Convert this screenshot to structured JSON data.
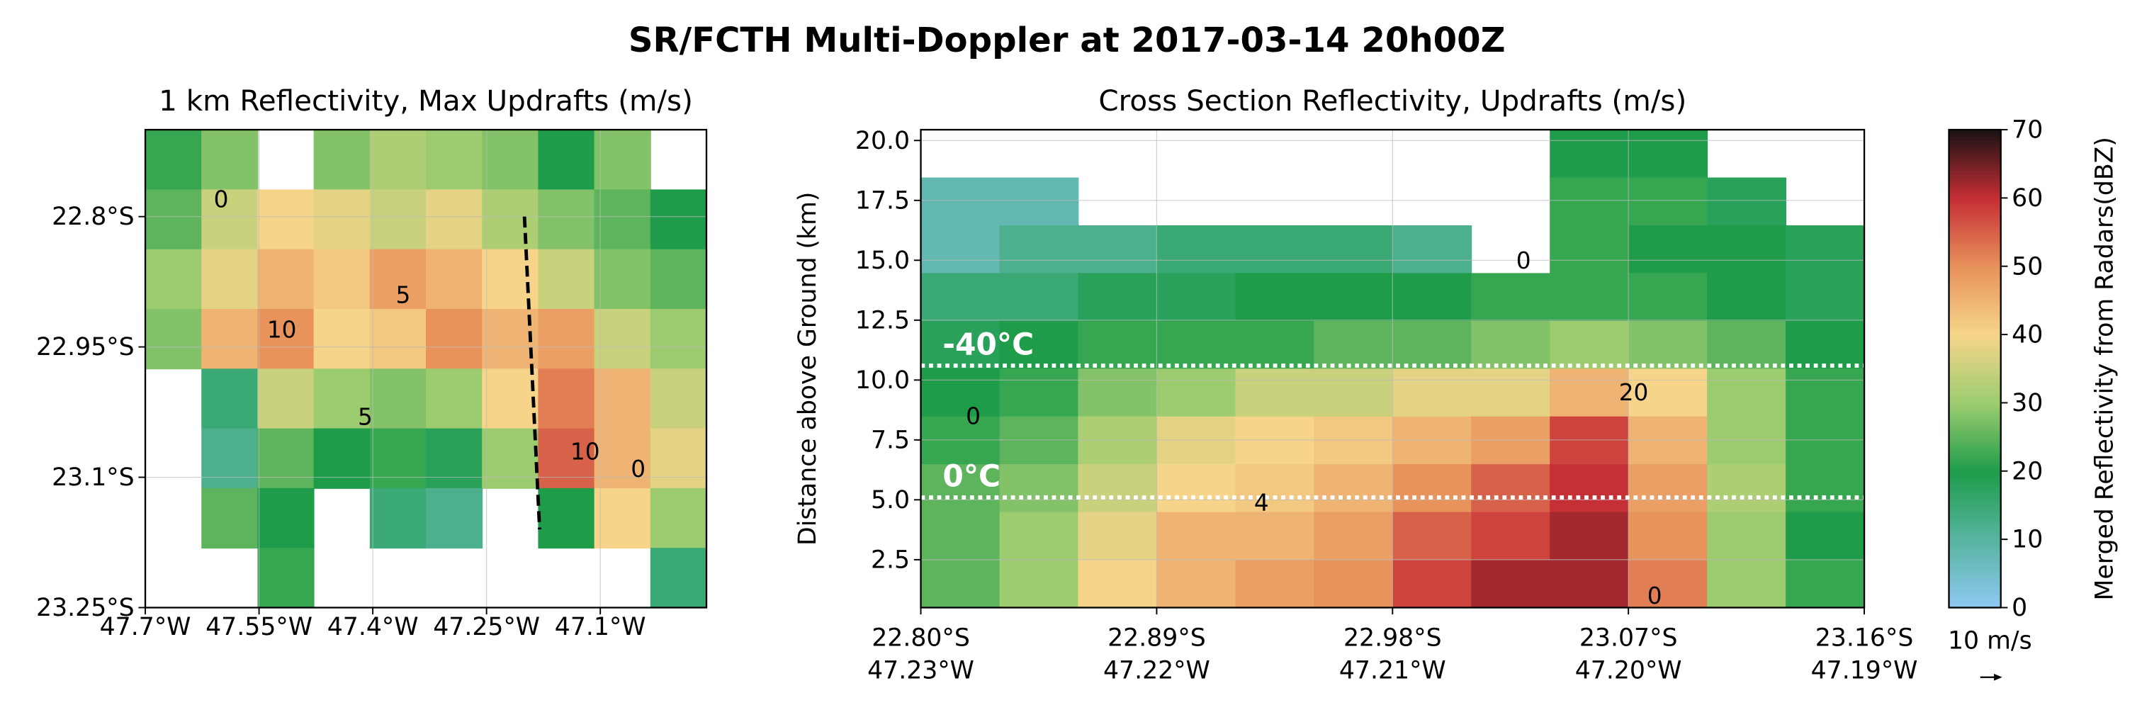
{
  "title": "SR/FCTH Multi-Doppler at 2017-03-14 20h00Z",
  "chart_data": [
    {
      "type": "heatmap",
      "title": "1 km Reflectivity, Max Updrafts (m/s)",
      "xlim": [
        -47.7,
        -46.96
      ],
      "ylim": [
        -23.25,
        -22.7
      ],
      "xticks": [
        {
          "value": -47.7,
          "label": "47.7°W"
        },
        {
          "value": -47.55,
          "label": "47.55°W"
        },
        {
          "value": -47.4,
          "label": "47.4°W"
        },
        {
          "value": -47.25,
          "label": "47.25°W"
        },
        {
          "value": -47.1,
          "label": "47.1°W"
        }
      ],
      "yticks": [
        {
          "value": -22.8,
          "label": "22.8°S"
        },
        {
          "value": -22.95,
          "label": "22.95°S"
        },
        {
          "value": -23.1,
          "label": "23.1°S"
        },
        {
          "value": -23.25,
          "label": "23.25°S"
        }
      ],
      "grid": true,
      "z": [
        [
          22,
          28,
          null,
          28,
          32,
          30,
          28,
          20,
          28,
          null
        ],
        [
          25,
          35,
          40,
          38,
          35,
          38,
          32,
          28,
          25,
          20
        ],
        [
          30,
          38,
          45,
          42,
          48,
          45,
          40,
          35,
          28,
          25
        ],
        [
          28,
          45,
          50,
          40,
          42,
          50,
          45,
          48,
          35,
          30
        ],
        [
          null,
          15,
          35,
          30,
          28,
          30,
          40,
          52,
          45,
          35
        ],
        [
          null,
          12,
          25,
          20,
          22,
          18,
          30,
          55,
          45,
          38
        ],
        [
          null,
          25,
          20,
          null,
          15,
          12,
          null,
          20,
          40,
          30
        ],
        [
          null,
          null,
          22,
          null,
          null,
          null,
          null,
          null,
          null,
          15
        ]
      ],
      "section_line": {
        "x": [
          -47.2,
          -47.18
        ],
        "y": [
          -22.8,
          -23.16
        ]
      },
      "contour_labels": [
        {
          "text": "10",
          "x": -47.52,
          "y": -22.93
        },
        {
          "text": "5",
          "x": -47.36,
          "y": -22.89
        },
        {
          "text": "0",
          "x": -47.6,
          "y": -22.78
        },
        {
          "text": "5",
          "x": -47.41,
          "y": -23.03
        },
        {
          "text": "10",
          "x": -47.12,
          "y": -23.07
        },
        {
          "text": "0",
          "x": -47.05,
          "y": -23.09
        }
      ]
    },
    {
      "type": "heatmap",
      "title": "Cross Section Reflectivity, Updrafts (m/s)",
      "ylabel": "Distance above Ground (km)",
      "xlim": [
        -22.8,
        -23.16
      ],
      "ylim": [
        0.5,
        20.45
      ],
      "xticks": [
        {
          "value": -22.8,
          "label": [
            "22.80°S",
            "47.23°W"
          ]
        },
        {
          "value": -22.89,
          "label": [
            "22.89°S",
            "47.22°W"
          ]
        },
        {
          "value": -22.98,
          "label": [
            "22.98°S",
            "47.21°W"
          ]
        },
        {
          "value": -23.07,
          "label": [
            "23.07°S",
            "47.20°W"
          ]
        },
        {
          "value": -23.16,
          "label": [
            "23.16°S",
            "47.19°W"
          ]
        }
      ],
      "yticks": [
        2.5,
        {
          "value": 5,
          "label": "5.0"
        },
        7.5,
        {
          "value": 10,
          "label": "10.0"
        },
        12.5,
        {
          "value": 15,
          "label": "15.0"
        },
        17.5,
        {
          "value": 20,
          "label": "20.0"
        }
      ],
      "grid": true,
      "z": [
        [
          null,
          null,
          null,
          null,
          null,
          null,
          null,
          null,
          20,
          20,
          null,
          null
        ],
        [
          8,
          8,
          null,
          null,
          null,
          null,
          null,
          null,
          22,
          22,
          18,
          null
        ],
        [
          8,
          12,
          12,
          15,
          15,
          15,
          12,
          null,
          22,
          20,
          20,
          18
        ],
        [
          15,
          15,
          18,
          18,
          20,
          20,
          20,
          22,
          22,
          22,
          20,
          18
        ],
        [
          18,
          20,
          22,
          22,
          22,
          25,
          25,
          28,
          30,
          28,
          25,
          20
        ],
        [
          20,
          22,
          28,
          30,
          35,
          35,
          38,
          38,
          45,
          40,
          30,
          22
        ],
        [
          22,
          25,
          32,
          38,
          40,
          42,
          45,
          48,
          58,
          45,
          30,
          22
        ],
        [
          25,
          28,
          35,
          40,
          42,
          45,
          50,
          55,
          60,
          48,
          32,
          22
        ],
        [
          25,
          30,
          38,
          45,
          45,
          48,
          55,
          58,
          62,
          50,
          30,
          20
        ],
        [
          25,
          30,
          40,
          45,
          48,
          50,
          58,
          62,
          62,
          52,
          30,
          22
        ]
      ],
      "isotherms": [
        {
          "label": "-40°C",
          "value": 10.6
        },
        {
          "label": "0°C",
          "value": 5.1
        }
      ],
      "contour_labels": [
        {
          "text": "0",
          "x": -23.03,
          "y": 15.0
        },
        {
          "text": "0",
          "x": -22.82,
          "y": 8.5
        },
        {
          "text": "4",
          "x": -22.93,
          "y": 4.9
        },
        {
          "text": "0",
          "x": -23.08,
          "y": 1.0
        },
        {
          "text": "20",
          "x": -23.072,
          "y": 9.5
        }
      ]
    }
  ],
  "colorbar": {
    "label": "Merged Reflectivity from Radars(dBZ)",
    "lim": [
      0,
      70
    ],
    "ticks": [
      0,
      10,
      20,
      30,
      40,
      50,
      60,
      70
    ],
    "colormap": [
      "#8fc8f5",
      "#58b5a0",
      "#1e9c4a",
      "#9ccc6f",
      "#f6d58a",
      "#e8925c",
      "#c62f35",
      "#1b1214"
    ]
  },
  "quiver_key": "10 m/s"
}
